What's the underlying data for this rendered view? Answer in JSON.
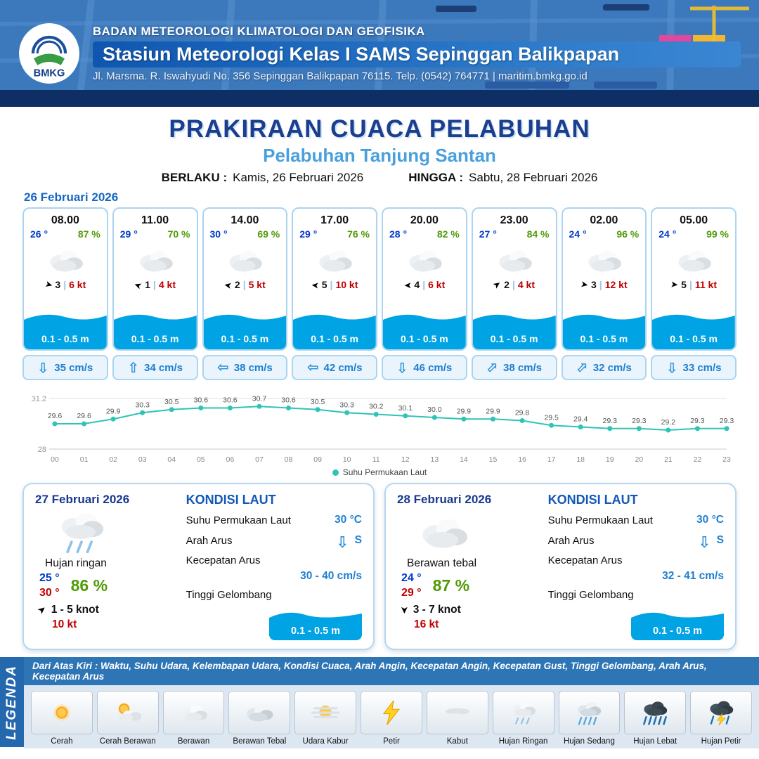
{
  "header": {
    "logo": "BMKG",
    "agency": "BADAN METEOROLOGI KLIMATOLOGI DAN GEOFISIKA",
    "station": "Stasiun Meteorologi Kelas I SAMS Sepinggan Balikpapan",
    "address": "Jl. Marsma. R. Iswahyudi No. 356 Sepinggan Balikpapan 76115. Telp. (0542) 764771 | maritim.bmkg.go.id"
  },
  "title": {
    "main": "PRAKIRAAN CUACA PELABUHAN",
    "subtitle": "Pelabuhan Tanjung Santan",
    "valid_label": "BERLAKU :",
    "valid_value": "Kamis, 26 Februari 2026",
    "until_label": "HINGGA :",
    "until_value": "Sabtu, 28 Februari 2026"
  },
  "icons": {
    "wind_arrow": "➤",
    "current_arrow": "⇧",
    "divider": "|"
  },
  "hourly": {
    "date": "26 Februari 2026",
    "cards": [
      {
        "time": "08.00",
        "temp": "26 °",
        "humidity": "87 %",
        "wind_rot": 15,
        "wind_num": "3",
        "wind_speed": "6 kt",
        "wave": "0.1 - 0.5 m",
        "cur_rot": 180,
        "current": "35 cm/s"
      },
      {
        "time": "11.00",
        "temp": "29 °",
        "humidity": "70 %",
        "wind_rot": 200,
        "wind_num": "1",
        "wind_speed": "4 kt",
        "wave": "0.1 - 0.5 m",
        "cur_rot": 0,
        "current": "34 cm/s"
      },
      {
        "time": "14.00",
        "temp": "30 °",
        "humidity": "69 %",
        "wind_rot": 190,
        "wind_num": "2",
        "wind_speed": "5 kt",
        "wave": "0.1 - 0.5 m",
        "cur_rot": 270,
        "current": "38 cm/s"
      },
      {
        "time": "17.00",
        "temp": "29 °",
        "humidity": "76 %",
        "wind_rot": 185,
        "wind_num": "5",
        "wind_speed": "10 kt",
        "wave": "0.1 - 0.5 m",
        "cur_rot": 270,
        "current": "42 cm/s"
      },
      {
        "time": "20.00",
        "temp": "28 °",
        "humidity": "82 %",
        "wind_rot": 180,
        "wind_num": "4",
        "wind_speed": "6 kt",
        "wave": "0.1 - 0.5 m",
        "cur_rot": 180,
        "current": "46 cm/s"
      },
      {
        "time": "23.00",
        "temp": "27 °",
        "humidity": "84 %",
        "wind_rot": -35,
        "wind_num": "2",
        "wind_speed": "4 kt",
        "wave": "0.1 - 0.5 m",
        "cur_rot": 45,
        "current": "38 cm/s"
      },
      {
        "time": "02.00",
        "temp": "24 °",
        "humidity": "96 %",
        "wind_rot": 10,
        "wind_num": "3",
        "wind_speed": "12 kt",
        "wave": "0.1 - 0.5 m",
        "cur_rot": 45,
        "current": "32 cm/s"
      },
      {
        "time": "05.00",
        "temp": "24 °",
        "humidity": "99 %",
        "wind_rot": 5,
        "wind_num": "5",
        "wind_speed": "11 kt",
        "wave": "0.1 - 0.5 m",
        "cur_rot": 180,
        "current": "33 cm/s"
      }
    ]
  },
  "chart_data": {
    "type": "line",
    "series_name": "Suhu Permukaan Laut",
    "x": [
      "00",
      "01",
      "02",
      "03",
      "04",
      "05",
      "06",
      "07",
      "08",
      "09",
      "10",
      "11",
      "12",
      "13",
      "14",
      "15",
      "16",
      "17",
      "18",
      "19",
      "20",
      "21",
      "22",
      "23"
    ],
    "values": [
      29.6,
      29.6,
      29.9,
      30.3,
      30.5,
      30.6,
      30.6,
      30.7,
      30.6,
      30.5,
      30.3,
      30.2,
      30.1,
      30.0,
      29.9,
      29.9,
      29.8,
      29.5,
      29.4,
      29.3,
      29.3,
      29.2,
      29.3,
      29.3
    ],
    "ylim": [
      28,
      31.2
    ],
    "line_color": "#2ec4b6",
    "grid": true,
    "legend_position": "bottom"
  },
  "daily": [
    {
      "date": "27 Februari 2026",
      "condition": "Hujan ringan",
      "icon": "#i-rain-light",
      "temp_min": "25 °",
      "temp_max": "30 °",
      "humidity": "86 %",
      "wind_rot": -40,
      "wind_range": "1 - 5 knot",
      "gust": "10 kt",
      "sea_title": "KONDISI LAUT",
      "sst_label": "Suhu Permukaan Laut",
      "sst_value": "30 °C",
      "current_dir_label": "Arah Arus",
      "current_dir_rot": 180,
      "current_dir": "S",
      "current_speed_label": "Kecepatan Arus",
      "current_speed": "30 - 40 cm/s",
      "wave_label": "Tinggi Gelombang",
      "wave_value": "0.1 - 0.5 m"
    },
    {
      "date": "28 Februari 2026",
      "condition": "Berawan tebal",
      "icon": "#i-cloud",
      "temp_min": "24 °",
      "temp_max": "29 °",
      "humidity": "87 %",
      "wind_rot": 90,
      "wind_range": "3 - 7 knot",
      "gust": "16 kt",
      "sea_title": "KONDISI LAUT",
      "sst_label": "Suhu Permukaan Laut",
      "sst_value": "30 °C",
      "current_dir_label": "Arah Arus",
      "current_dir_rot": 180,
      "current_dir": "S",
      "current_speed_label": "Kecepatan Arus",
      "current_speed": "32 - 41 cm/s",
      "wave_label": "Tinggi Gelombang",
      "wave_value": "0.1 - 0.5 m"
    }
  ],
  "legend": {
    "side_label": "LEGENDA",
    "note": "Dari Atas Kiri : Waktu, Suhu Udara, Kelembapan Udara, Kondisi Cuaca, Arah Angin, Kecepatan Angin, Kecepatan Gust, Tinggi Gelombang, Arah Arus, Kecepatan Arus",
    "items": [
      {
        "label": "Cerah",
        "icon": "#i-sun"
      },
      {
        "label": "Cerah Berawan",
        "icon": "#i-sun-cloud"
      },
      {
        "label": "Berawan",
        "icon": "#i-cloud"
      },
      {
        "label": "Berawan Tebal",
        "icon": "#i-cloud-thick"
      },
      {
        "label": "Udara Kabur",
        "icon": "#i-haze"
      },
      {
        "label": "Petir",
        "icon": "#i-lightning"
      },
      {
        "label": "Kabut",
        "icon": "#i-fog"
      },
      {
        "label": "Hujan Ringan",
        "icon": "#i-rain-light"
      },
      {
        "label": "Hujan Sedang",
        "icon": "#i-rain-medium"
      },
      {
        "label": "Hujan Lebat",
        "icon": "#i-rain-heavy"
      },
      {
        "label": "Hujan Petir",
        "icon": "#i-thunderstorm"
      }
    ]
  },
  "colors": {
    "header_blue": "#2f6ab0",
    "title_blue": "#1b3e8f",
    "subtitle_blue": "#4aa0dc",
    "temp_blue": "#0038cc",
    "humidity_green": "#4f9a06",
    "wind_red": "#c00000",
    "wave_blue": "#00a3e3",
    "current_blue": "#1f7fd0",
    "chart_teal": "#2ec4b6"
  }
}
